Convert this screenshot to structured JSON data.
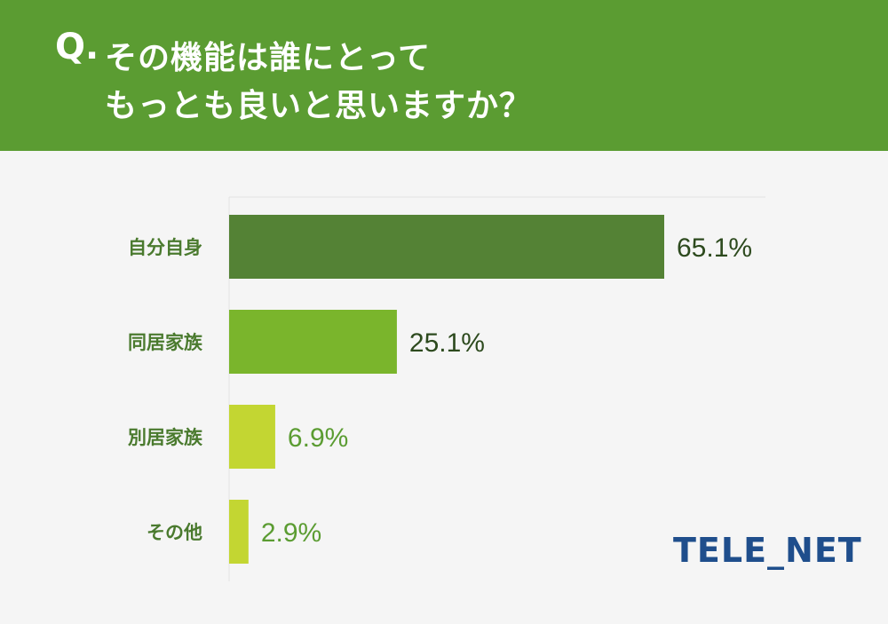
{
  "question": {
    "prefix": "Q.",
    "line1": "その機能は誰にとって",
    "line2": "もっとも良いと思いますか？"
  },
  "logo": {
    "text": "TELE_NET"
  },
  "colors": {
    "header_bg": "#5b9c32",
    "category_label": "#4a7a2e",
    "bar_colors": [
      "#548235",
      "#7ab52c",
      "#c3d632",
      "#c3d632"
    ],
    "value_colors": [
      "#2d4a1e",
      "#2d4a1e",
      "#5b9c32",
      "#5b9c32"
    ],
    "logo": "#1f4e8c"
  },
  "chart_data": {
    "type": "bar",
    "orientation": "horizontal",
    "categories": [
      "自分自身",
      "同居家族",
      "別居家族",
      "その他"
    ],
    "values": [
      65.1,
      25.1,
      6.9,
      2.9
    ],
    "value_labels": [
      "65.1%",
      "25.1%",
      "6.9%",
      "2.9%"
    ],
    "xlim": [
      0,
      70
    ],
    "title": "",
    "xlabel": "",
    "ylabel": "",
    "grid": false,
    "legend": "none"
  }
}
